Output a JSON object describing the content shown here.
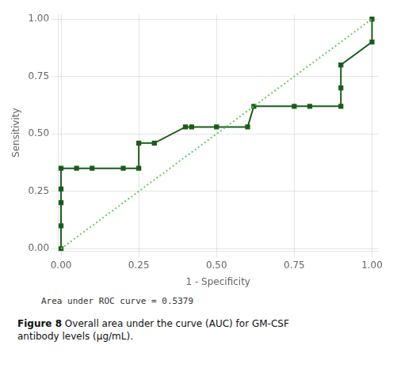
{
  "chart_data": {
    "type": "line",
    "xlabel": "1 - Specificity",
    "ylabel": "Sensitivity",
    "series": [
      {
        "x": [
          0.0,
          1.0
        ],
        "values": [
          0.0,
          1.0
        ],
        "color": "#66cc66",
        "line_style": "dotted",
        "marker": "none"
      },
      {
        "x": [
          0.0,
          0.0,
          0.0,
          0.0,
          0.0,
          0.05,
          0.1,
          0.2,
          0.25,
          0.25,
          0.3,
          0.4,
          0.42,
          0.5,
          0.6,
          0.62,
          0.75,
          0.8,
          0.9,
          0.9,
          0.9,
          1.0,
          1.0
        ],
        "values": [
          0.0,
          0.1,
          0.2,
          0.26,
          0.35,
          0.35,
          0.35,
          0.35,
          0.35,
          0.46,
          0.46,
          0.53,
          0.53,
          0.53,
          0.53,
          0.62,
          0.62,
          0.62,
          0.62,
          0.7,
          0.8,
          0.9,
          1.0
        ],
        "color": "#1a5c1a",
        "line_style": "solid",
        "marker": "square"
      }
    ],
    "xlim": [
      -0.01,
      1.02
    ],
    "ylim": [
      -0.01,
      1.02
    ],
    "xticks": [
      {
        "value": 0,
        "label": "0.00"
      },
      {
        "value": 0.25,
        "label": "0.25"
      },
      {
        "value": 0.5,
        "label": "0.50"
      },
      {
        "value": 0.75,
        "label": "0.75"
      },
      {
        "value": 1,
        "label": "1.00"
      }
    ],
    "yticks": [
      {
        "value": 0,
        "label": "0.00"
      },
      {
        "value": 0.25,
        "label": "0.25"
      },
      {
        "value": 0.5,
        "label": "0.50"
      },
      {
        "value": 0.75,
        "label": "0.75"
      },
      {
        "value": 1,
        "label": "1.00"
      }
    ],
    "grid": true,
    "annotations": [
      "Area under ROC curve = 0.5379"
    ],
    "caption": {
      "bold": "Figure 8",
      "text": "Overall area under the curve (AUC) for GM-CSF\nantibody levels (μg/mL)."
    }
  }
}
